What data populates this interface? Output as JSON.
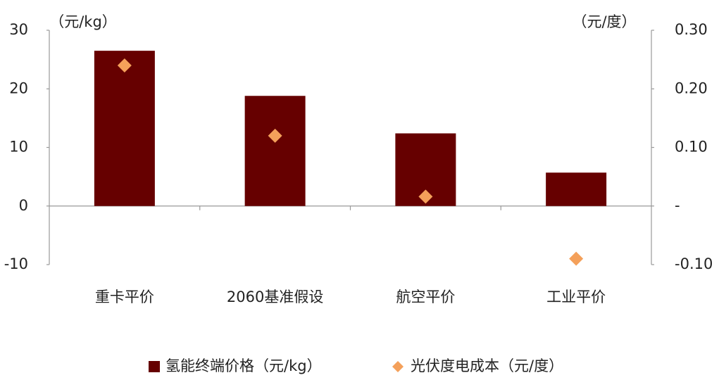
{
  "chart_data": {
    "type": "bar",
    "y_label": "（元/kg）",
    "y2_label": "（元/度）",
    "categories": [
      "重卡平价",
      "2060基准假设",
      "航空平价",
      "工业平价"
    ],
    "series": [
      {
        "name": "氢能终端价格（元/kg）",
        "type": "bar",
        "color": "#660000",
        "values": [
          26.5,
          18.8,
          12.4,
          5.7
        ]
      },
      {
        "name": "光伏度电成本（元/度）",
        "type": "scatter",
        "marker": "diamond",
        "axis": "y2",
        "color": "#f4a05a",
        "values": [
          0.24,
          0.12,
          0.016,
          -0.09
        ]
      }
    ],
    "ylim": [
      -10,
      30
    ],
    "yticks": [
      -10,
      0,
      10,
      20,
      30
    ],
    "y2lim": [
      -0.1,
      0.3
    ],
    "y2ticks": [
      {
        "value": -0.1,
        "label": "-0.10"
      },
      {
        "value": 0,
        "label": "-"
      },
      {
        "value": 0.1,
        "label": "0.10"
      },
      {
        "value": 0.2,
        "label": "0.20"
      },
      {
        "value": 0.3,
        "label": "0.30"
      }
    ],
    "legend": "bottom"
  }
}
